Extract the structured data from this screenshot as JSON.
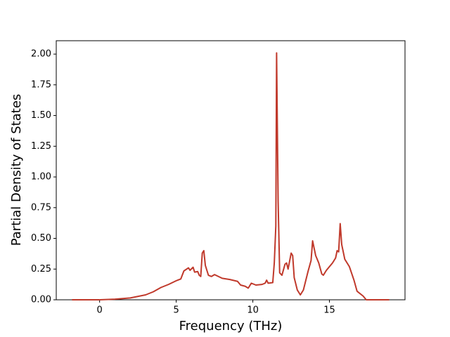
{
  "chart_data": {
    "type": "line",
    "xlabel": "Frequency (THz)",
    "ylabel": "Partial Density of States",
    "color": "#c0392b",
    "x": [
      -1.8,
      0,
      1,
      2,
      3,
      3.5,
      4,
      4.5,
      5,
      5.3,
      5.5,
      5.8,
      5.9,
      6.1,
      6.2,
      6.4,
      6.5,
      6.6,
      6.7,
      6.8,
      6.9,
      7.1,
      7.3,
      7.5,
      8,
      8.5,
      9,
      9.2,
      9.5,
      9.7,
      9.9,
      10.2,
      10.6,
      10.8,
      10.9,
      11.0,
      11.3,
      11.4,
      11.5,
      11.55,
      11.65,
      11.75,
      11.9,
      12.1,
      12.2,
      12.3,
      12.5,
      12.6,
      12.7,
      12.9,
      13.1,
      13.3,
      13.6,
      13.8,
      13.9,
      14.1,
      14.3,
      14.5,
      14.6,
      14.8,
      15.2,
      15.4,
      15.5,
      15.6,
      15.7,
      15.8,
      16,
      16.3,
      16.6,
      16.8,
      17.2,
      17.4,
      18.9
    ],
    "values": [
      0,
      0,
      0.005,
      0.015,
      0.04,
      0.065,
      0.1,
      0.125,
      0.155,
      0.17,
      0.235,
      0.26,
      0.24,
      0.265,
      0.225,
      0.23,
      0.2,
      0.19,
      0.38,
      0.4,
      0.28,
      0.2,
      0.19,
      0.205,
      0.175,
      0.165,
      0.15,
      0.12,
      0.11,
      0.095,
      0.135,
      0.12,
      0.125,
      0.135,
      0.16,
      0.135,
      0.14,
      0.3,
      0.6,
      2.01,
      0.8,
      0.22,
      0.2,
      0.29,
      0.3,
      0.25,
      0.38,
      0.36,
      0.18,
      0.08,
      0.04,
      0.08,
      0.23,
      0.32,
      0.48,
      0.36,
      0.3,
      0.21,
      0.2,
      0.24,
      0.3,
      0.34,
      0.4,
      0.39,
      0.62,
      0.45,
      0.33,
      0.27,
      0.16,
      0.07,
      0.03,
      0,
      0
    ],
    "xlim": [
      -2.83,
      19.93
    ],
    "ylim": [
      0,
      2.109
    ],
    "xticks": [
      0,
      5,
      10,
      15
    ],
    "yticks": [
      {
        "value": 0,
        "label": "0.00"
      },
      {
        "value": 0.25,
        "label": "0.25"
      },
      {
        "value": 0.5,
        "label": "0.50"
      },
      {
        "value": 0.75,
        "label": "0.75"
      },
      {
        "value": 1,
        "label": "1.00"
      },
      {
        "value": 1.25,
        "label": "1.25"
      },
      {
        "value": 1.5,
        "label": "1.50"
      },
      {
        "value": 1.75,
        "label": "1.75"
      },
      {
        "value": 2,
        "label": "2.00"
      }
    ]
  }
}
